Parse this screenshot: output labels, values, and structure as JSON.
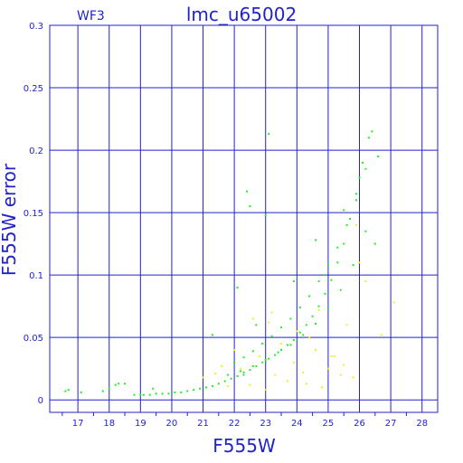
{
  "chart_data": {
    "type": "scatter",
    "title": "lmc_u65002",
    "subtitle": "WF3",
    "xlabel": "F555W",
    "ylabel": "F555W error",
    "xlim": [
      16.1,
      28.5
    ],
    "ylim": [
      -0.01,
      0.3
    ],
    "xticks": [
      "17",
      "18",
      "19",
      "20",
      "21",
      "22",
      "23",
      "24",
      "25",
      "26",
      "27",
      "28"
    ],
    "yticks": [
      "0",
      "0.05",
      "0.1",
      "0.15",
      "0.2",
      "0.25",
      "0.3"
    ],
    "grid": true,
    "colors": {
      "axis": "#2222cc",
      "grid": "#2222cc",
      "main": "#22ee22",
      "secondary": "#eeee22"
    },
    "series": [
      {
        "color": "#22ee22",
        "x": [
          16.6,
          16.7,
          17.1,
          17.8,
          18.0,
          18.3,
          18.5,
          18.8,
          19.0,
          19.1,
          19.3,
          19.5,
          19.7,
          19.9,
          20.1,
          20.3,
          20.5,
          20.7,
          20.9,
          21.1,
          21.3,
          21.5,
          21.7,
          21.9,
          22.1,
          22.3,
          22.5,
          22.7,
          22.9,
          23.1,
          23.3,
          23.5,
          23.7,
          23.9,
          24.1,
          24.3,
          24.5,
          24.7,
          24.9,
          25.1,
          25.3,
          25.5,
          25.7,
          25.9,
          26.1,
          26.3,
          26.4,
          22.0,
          22.3,
          22.6,
          22.9,
          23.2,
          23.5,
          23.8,
          24.1,
          24.4,
          24.7,
          25.0,
          25.3,
          25.6,
          25.9,
          26.2,
          21.8,
          22.2,
          22.6,
          23.0,
          23.4,
          23.8,
          24.2,
          24.6,
          25.0,
          25.4,
          25.8,
          26.2,
          22.4,
          22.5,
          23.1,
          21.3,
          22.1,
          26.6,
          26.5,
          23.0,
          22.3,
          18.2,
          19.4,
          23.9,
          24.6,
          25.5,
          26.0,
          22.7,
          24.9
        ],
        "y": [
          0.007,
          0.008,
          0.006,
          0.007,
          0.009,
          0.013,
          0.013,
          0.004,
          0.004,
          0.004,
          0.004,
          0.005,
          0.005,
          0.005,
          0.006,
          0.006,
          0.007,
          0.008,
          0.009,
          0.01,
          0.011,
          0.013,
          0.015,
          0.017,
          0.019,
          0.022,
          0.024,
          0.027,
          0.03,
          0.033,
          0.036,
          0.04,
          0.044,
          0.048,
          0.054,
          0.06,
          0.067,
          0.075,
          0.085,
          0.096,
          0.11,
          0.125,
          0.145,
          0.165,
          0.19,
          0.21,
          0.215,
          0.03,
          0.034,
          0.039,
          0.045,
          0.051,
          0.058,
          0.065,
          0.074,
          0.083,
          0.095,
          0.108,
          0.122,
          0.14,
          0.16,
          0.185,
          0.02,
          0.023,
          0.027,
          0.032,
          0.038,
          0.044,
          0.052,
          0.061,
          0.073,
          0.088,
          0.108,
          0.135,
          0.167,
          0.155,
          0.213,
          0.052,
          0.09,
          0.195,
          0.125,
          0.148,
          0.02,
          0.012,
          0.009,
          0.095,
          0.128,
          0.152,
          0.178,
          0.06,
          0.1
        ]
      },
      {
        "color": "#eeee22",
        "x": [
          21.0,
          21.4,
          21.8,
          22.0,
          22.2,
          22.5,
          22.8,
          23.0,
          23.1,
          23.3,
          23.5,
          23.7,
          23.9,
          24.0,
          24.2,
          24.4,
          24.6,
          24.8,
          25.0,
          25.2,
          25.4,
          25.6,
          25.8,
          26.0,
          26.2,
          26.7,
          27.1,
          22.6,
          23.2,
          24.7,
          25.1,
          25.5,
          21.6,
          24.3,
          25.9
        ],
        "y": [
          0.018,
          0.021,
          0.011,
          0.04,
          0.025,
          0.012,
          0.035,
          0.008,
          0.062,
          0.02,
          0.045,
          0.015,
          0.03,
          0.055,
          0.022,
          0.05,
          0.04,
          0.01,
          0.025,
          0.035,
          0.02,
          0.06,
          0.018,
          0.11,
          0.095,
          0.052,
          0.078,
          0.065,
          0.07,
          0.072,
          0.035,
          0.028,
          0.027,
          0.013,
          0.14
        ]
      }
    ]
  }
}
